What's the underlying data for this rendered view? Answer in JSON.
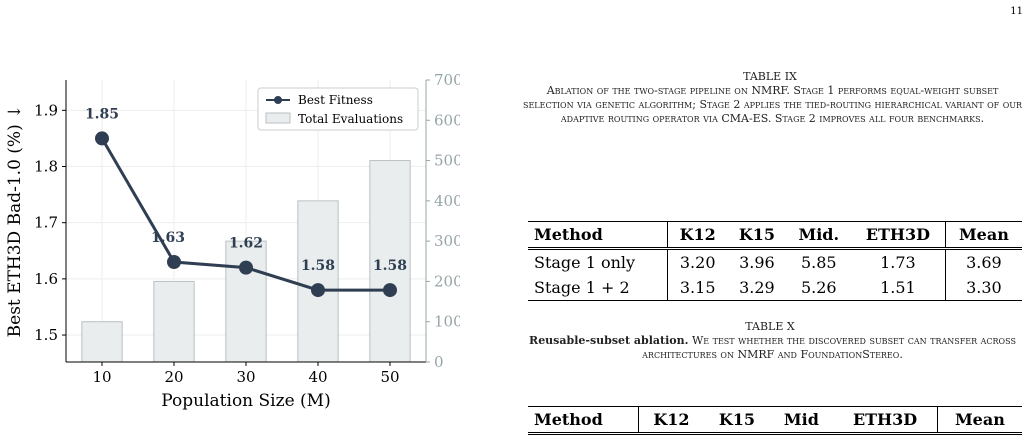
{
  "page_number": "11",
  "chart_data": {
    "type": "bar-line",
    "xlabel": "Population Size (M)",
    "ylabel": "Best ETH3D Bad-1.0 (%) ↓",
    "y2label": "Total Evaluations",
    "x": [
      10,
      20,
      30,
      40,
      50
    ],
    "xlim": [
      5,
      55
    ],
    "xticks": [
      10,
      20,
      30,
      40,
      50
    ],
    "ylim": [
      1.452,
      1.954
    ],
    "yticks": [
      1.5,
      1.6,
      1.7,
      1.8,
      1.9
    ],
    "y2lim": [
      0,
      700
    ],
    "y2ticks": [
      0,
      100,
      200,
      300,
      400,
      500,
      600,
      700
    ],
    "grid": true,
    "legend": "upper right",
    "series": [
      {
        "name": "Best Fitness",
        "type": "line",
        "color": "#2f3e52",
        "values": [
          1.85,
          1.63,
          1.62,
          1.58,
          1.58
        ]
      },
      {
        "name": "Total Evaluations",
        "type": "bar",
        "axis": "y2",
        "color": "#e9edee",
        "values": [
          100,
          200,
          300,
          400,
          500
        ]
      }
    ]
  },
  "tables": [
    {
      "label": "TABLE IX",
      "caption": "Ablation of the two-stage pipeline on NMRF. Stage 1 performs equal-weight subset selection via genetic algorithm; Stage 2 applies the tied-routing hierarchical variant of our adaptive routing operator via CMA-ES. Stage 2 improves all four benchmarks.",
      "header": [
        "Method",
        "K12",
        "K15",
        "Mid.",
        "ETH3D",
        "Mean"
      ],
      "rows": [
        [
          "Stage 1 only",
          "3.20",
          "3.96",
          "5.85",
          "1.73",
          "3.69"
        ],
        [
          "Stage 1 + 2",
          "3.15",
          "3.29",
          "5.26",
          "1.51",
          "3.30"
        ]
      ]
    },
    {
      "label": "TABLE X",
      "caption_bold": "Reusable-subset ablation.",
      "caption": "We test whether the discovered subset can transfer across architectures on NMRF and FoundationStereo.",
      "header": [
        "Method",
        "K12",
        "K15",
        "Mid",
        "ETH3D",
        "Mean"
      ],
      "rows": []
    }
  ]
}
